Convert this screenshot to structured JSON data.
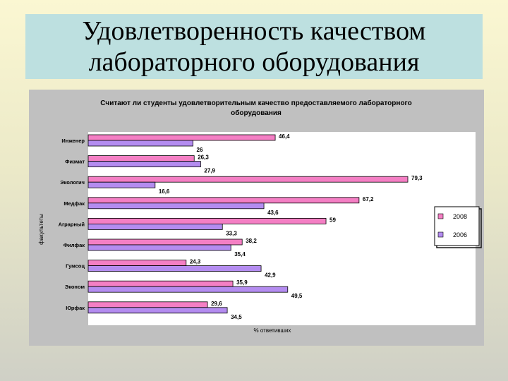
{
  "slide": {
    "title_line1": "Удовлетворенность качеством",
    "title_line2": "лабораторного оборудования"
  },
  "chart_data": {
    "type": "bar",
    "orientation": "horizontal",
    "title_line1": "Считают ли студенты удовлетворительным качество предоставляемого лабораторного",
    "title_line2": "оборудования",
    "xlabel": "% ответивших",
    "ylabel": "факультеты",
    "categories": [
      "Инженер",
      "Физмат",
      "Экологич",
      "Медфак",
      "Аграрный",
      "Филфак",
      "Гумсоц",
      "Эконом",
      "Юрфак"
    ],
    "series": [
      {
        "name": "2008",
        "color": "#f47fc4",
        "values": [
          46.4,
          26.3,
          79.3,
          67.2,
          59,
          38.2,
          24.3,
          35.9,
          29.6
        ]
      },
      {
        "name": "2006",
        "color": "#b48cf0",
        "values": [
          26,
          27.9,
          16.6,
          43.6,
          33.3,
          35.4,
          42.9,
          49.5,
          34.5
        ]
      }
    ],
    "value_labels": {
      "2008": [
        "46,4",
        "26,3",
        "79,3",
        "67,2",
        "59",
        "38,2",
        "24,3",
        "35,9",
        "29,6"
      ],
      "2006": [
        "26",
        "27,9",
        "16,6",
        "43,6",
        "33,3",
        "35,4",
        "42,9",
        "49,5",
        "34,5"
      ]
    },
    "xlim": [
      0,
      80
    ],
    "legend_position": "right",
    "grid": false
  }
}
